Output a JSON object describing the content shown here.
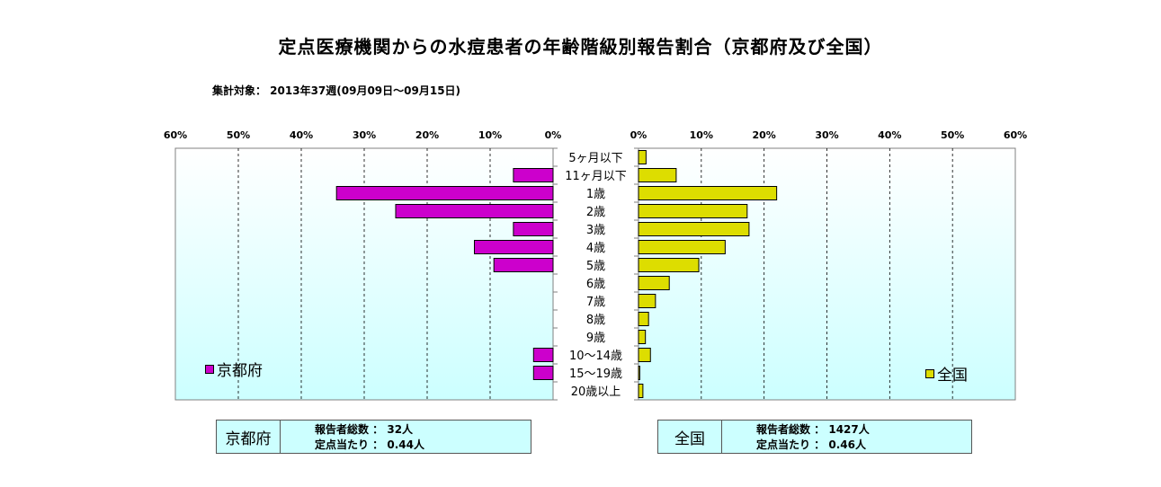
{
  "title": "定点医療機関からの水痘患者の年齢階級別報告割合（京都府及び全国）",
  "subtitle": "集計対象： 2013年37週(09月09日～09月15日)",
  "colors": {
    "kyoto": "#cc00cc",
    "national": "#dddd00",
    "plot_bg_top": "#ffffff",
    "plot_bg_bottom": "#ccffff"
  },
  "legend": {
    "kyoto": "京都府",
    "national": "全国"
  },
  "info": {
    "kyoto": {
      "region": "京都府",
      "line1": "報告者総数 ： 32人",
      "line2": "定点当たり ： 0.44人"
    },
    "national": {
      "region": "全国",
      "line1": "報告者総数 ： 1427人",
      "line2": "定点当たり ： 0.46人"
    }
  },
  "chart_data": {
    "type": "bar",
    "orientation": "horizontal-butterfly",
    "categories": [
      "5ヶ月以下",
      "11ヶ月以下",
      "1歳",
      "2歳",
      "3歳",
      "4歳",
      "5歳",
      "6歳",
      "7歳",
      "8歳",
      "9歳",
      "10～14歳",
      "15～19歳",
      "20歳以上"
    ],
    "xlim": [
      0,
      60
    ],
    "ticks": [
      "0%",
      "10%",
      "20%",
      "30%",
      "40%",
      "50%",
      "60%"
    ],
    "series": [
      {
        "name": "京都府",
        "values": [
          0,
          6.3,
          34.4,
          25.0,
          6.3,
          12.5,
          9.4,
          0,
          0,
          0,
          0,
          3.1,
          3.1,
          0
        ]
      },
      {
        "name": "全国",
        "values": [
          1.2,
          6.0,
          22.0,
          17.3,
          17.6,
          13.8,
          9.6,
          4.9,
          2.7,
          1.6,
          1.1,
          1.9,
          0.2,
          0.7
        ]
      }
    ],
    "grid": true,
    "legend_position": {
      "kyoto": "bottom-left",
      "national": "bottom-right"
    }
  }
}
